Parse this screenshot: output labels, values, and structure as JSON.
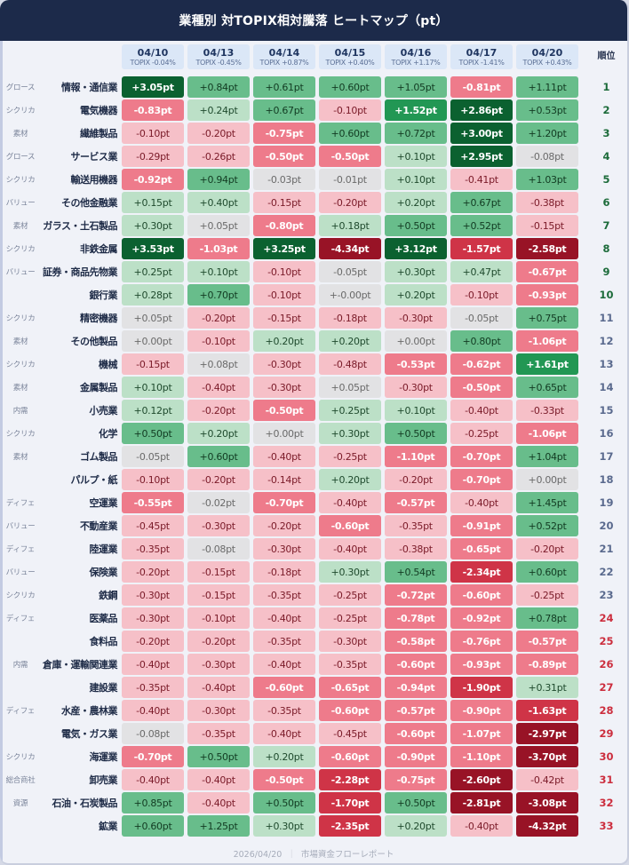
{
  "title": "業種別 対TOPIX相対騰落 ヒートマップ（pt）",
  "rank_header": "順位",
  "unit": "pt",
  "dates": [
    {
      "date": "04/10",
      "topix": "TOPIX -0.04%"
    },
    {
      "date": "04/13",
      "topix": "TOPIX -0.45%"
    },
    {
      "date": "04/14",
      "topix": "TOPIX +0.87%"
    },
    {
      "date": "04/15",
      "topix": "TOPIX +0.40%"
    },
    {
      "date": "04/16",
      "topix": "TOPIX +1.17%"
    },
    {
      "date": "04/17",
      "topix": "TOPIX -1.41%"
    },
    {
      "date": "04/20",
      "topix": "TOPIX +0.43%"
    }
  ],
  "rows": [
    {
      "tag": "グロース",
      "sector": "情報・通信業",
      "rank": "1",
      "cells": [
        "+3.05pt",
        "+0.84pt",
        "+0.61pt",
        "+0.60pt",
        "+1.05pt",
        "-0.81pt",
        "+1.11pt"
      ],
      "classes": [
        "g4",
        "g2",
        "g2",
        "g2",
        "g2",
        "r2",
        "g2"
      ]
    },
    {
      "tag": "シクリカ",
      "sector": "電気機器",
      "rank": "2",
      "cells": [
        "-0.83pt",
        "+0.24pt",
        "+0.67pt",
        "-0.10pt",
        "+1.52pt",
        "+2.86pt",
        "+0.53pt"
      ],
      "classes": [
        "r2",
        "g1",
        "g2",
        "r1",
        "g3",
        "g4",
        "g2"
      ]
    },
    {
      "tag": "素材",
      "sector": "繊維製品",
      "rank": "3",
      "cells": [
        "-0.10pt",
        "-0.20pt",
        "-0.75pt",
        "+0.60pt",
        "+0.72pt",
        "+3.00pt",
        "+1.20pt"
      ],
      "classes": [
        "r1",
        "r1",
        "r2",
        "g2",
        "g2",
        "g4",
        "g2"
      ]
    },
    {
      "tag": "グロース",
      "sector": "サービス業",
      "rank": "4",
      "cells": [
        "-0.29pt",
        "-0.26pt",
        "-0.50pt",
        "-0.50pt",
        "+0.10pt",
        "+2.95pt",
        "-0.08pt"
      ],
      "classes": [
        "r1",
        "r1",
        "r2",
        "r2",
        "g1",
        "g4",
        "n0"
      ]
    },
    {
      "tag": "シクリカ",
      "sector": "輸送用機器",
      "rank": "5",
      "cells": [
        "-0.92pt",
        "+0.94pt",
        "-0.03pt",
        "-0.01pt",
        "+0.10pt",
        "-0.41pt",
        "+1.03pt"
      ],
      "classes": [
        "r2",
        "g2",
        "n0",
        "n0",
        "g1",
        "r1",
        "g2"
      ]
    },
    {
      "tag": "バリュー",
      "sector": "その他金融業",
      "rank": "6",
      "cells": [
        "+0.15pt",
        "+0.40pt",
        "-0.15pt",
        "-0.20pt",
        "+0.20pt",
        "+0.67pt",
        "-0.38pt"
      ],
      "classes": [
        "g1",
        "g1",
        "r1",
        "r1",
        "g1",
        "g2",
        "r1"
      ]
    },
    {
      "tag": "素材",
      "sector": "ガラス・土石製品",
      "rank": "7",
      "cells": [
        "+0.30pt",
        "+0.05pt",
        "-0.80pt",
        "+0.18pt",
        "+0.50pt",
        "+0.52pt",
        "-0.15pt"
      ],
      "classes": [
        "g1",
        "n0",
        "r2",
        "g1",
        "g2",
        "g2",
        "r1"
      ]
    },
    {
      "tag": "シクリカ",
      "sector": "非鉄金属",
      "rank": "8",
      "cells": [
        "+3.53pt",
        "-1.03pt",
        "+3.25pt",
        "-4.34pt",
        "+3.12pt",
        "-1.57pt",
        "-2.58pt"
      ],
      "classes": [
        "g4",
        "r2",
        "g4",
        "r4",
        "g4",
        "r3",
        "r4"
      ]
    },
    {
      "tag": "バリュー",
      "sector": "証券・商品先物業",
      "rank": "9",
      "cells": [
        "+0.25pt",
        "+0.10pt",
        "-0.10pt",
        "-0.05pt",
        "+0.30pt",
        "+0.47pt",
        "-0.67pt"
      ],
      "classes": [
        "g1",
        "g1",
        "r1",
        "n0",
        "g1",
        "g1",
        "r2"
      ]
    },
    {
      "tag": "",
      "sector": "銀行業",
      "rank": "10",
      "cells": [
        "+0.28pt",
        "+0.70pt",
        "-0.10pt",
        "+-0.00pt",
        "+0.20pt",
        "-0.10pt",
        "-0.93pt"
      ],
      "classes": [
        "g1",
        "g2",
        "r1",
        "n0",
        "g1",
        "r1",
        "r2"
      ]
    },
    {
      "tag": "シクリカ",
      "sector": "精密機器",
      "rank": "11",
      "cells": [
        "+0.05pt",
        "-0.20pt",
        "-0.15pt",
        "-0.18pt",
        "-0.30pt",
        "-0.05pt",
        "+0.75pt"
      ],
      "classes": [
        "n0",
        "r1",
        "r1",
        "r1",
        "r1",
        "n0",
        "g2"
      ]
    },
    {
      "tag": "素材",
      "sector": "その他製品",
      "rank": "12",
      "cells": [
        "+0.00pt",
        "-0.10pt",
        "+0.20pt",
        "+0.20pt",
        "+0.00pt",
        "+0.80pt",
        "-1.06pt"
      ],
      "classes": [
        "n0",
        "r1",
        "g1",
        "g1",
        "n0",
        "g2",
        "r2"
      ]
    },
    {
      "tag": "シクリカ",
      "sector": "機械",
      "rank": "13",
      "cells": [
        "-0.15pt",
        "+0.08pt",
        "-0.30pt",
        "-0.48pt",
        "-0.53pt",
        "-0.62pt",
        "+1.61pt"
      ],
      "classes": [
        "r1",
        "n0",
        "r1",
        "r1",
        "r2",
        "r2",
        "g3"
      ]
    },
    {
      "tag": "素材",
      "sector": "金属製品",
      "rank": "14",
      "cells": [
        "+0.10pt",
        "-0.40pt",
        "-0.30pt",
        "+0.05pt",
        "-0.30pt",
        "-0.50pt",
        "+0.65pt"
      ],
      "classes": [
        "g1",
        "r1",
        "r1",
        "n0",
        "r1",
        "r2",
        "g2"
      ]
    },
    {
      "tag": "内需",
      "sector": "小売業",
      "rank": "15",
      "cells": [
        "+0.12pt",
        "-0.20pt",
        "-0.50pt",
        "+0.25pt",
        "+0.10pt",
        "-0.40pt",
        "-0.33pt"
      ],
      "classes": [
        "g1",
        "r1",
        "r2",
        "g1",
        "g1",
        "r1",
        "r1"
      ]
    },
    {
      "tag": "シクリカ",
      "sector": "化学",
      "rank": "16",
      "cells": [
        "+0.50pt",
        "+0.20pt",
        "+0.00pt",
        "+0.30pt",
        "+0.50pt",
        "-0.25pt",
        "-1.06pt"
      ],
      "classes": [
        "g2",
        "g1",
        "n0",
        "g1",
        "g2",
        "r1",
        "r2"
      ]
    },
    {
      "tag": "素材",
      "sector": "ゴム製品",
      "rank": "17",
      "cells": [
        "-0.05pt",
        "+0.60pt",
        "-0.40pt",
        "-0.25pt",
        "-1.10pt",
        "-0.70pt",
        "+1.04pt"
      ],
      "classes": [
        "n0",
        "g2",
        "r1",
        "r1",
        "r2",
        "r2",
        "g2"
      ]
    },
    {
      "tag": "",
      "sector": "パルプ・紙",
      "rank": "18",
      "cells": [
        "-0.10pt",
        "-0.20pt",
        "-0.14pt",
        "+0.20pt",
        "-0.20pt",
        "-0.70pt",
        "+0.00pt"
      ],
      "classes": [
        "r1",
        "r1",
        "r1",
        "g1",
        "r1",
        "r2",
        "n0"
      ]
    },
    {
      "tag": "ディフェ",
      "sector": "空運業",
      "rank": "19",
      "cells": [
        "-0.55pt",
        "-0.02pt",
        "-0.70pt",
        "-0.40pt",
        "-0.57pt",
        "-0.40pt",
        "+1.45pt"
      ],
      "classes": [
        "r2",
        "n0",
        "r2",
        "r1",
        "r2",
        "r1",
        "g2"
      ]
    },
    {
      "tag": "バリュー",
      "sector": "不動産業",
      "rank": "20",
      "cells": [
        "-0.45pt",
        "-0.30pt",
        "-0.20pt",
        "-0.60pt",
        "-0.35pt",
        "-0.91pt",
        "+0.52pt"
      ],
      "classes": [
        "r1",
        "r1",
        "r1",
        "r2",
        "r1",
        "r2",
        "g2"
      ]
    },
    {
      "tag": "ディフェ",
      "sector": "陸運業",
      "rank": "21",
      "cells": [
        "-0.35pt",
        "-0.08pt",
        "-0.30pt",
        "-0.40pt",
        "-0.38pt",
        "-0.65pt",
        "-0.20pt"
      ],
      "classes": [
        "r1",
        "n0",
        "r1",
        "r1",
        "r1",
        "r2",
        "r1"
      ]
    },
    {
      "tag": "バリュー",
      "sector": "保険業",
      "rank": "22",
      "cells": [
        "-0.20pt",
        "-0.15pt",
        "-0.18pt",
        "+0.30pt",
        "+0.54pt",
        "-2.34pt",
        "+0.60pt"
      ],
      "classes": [
        "r1",
        "r1",
        "r1",
        "g1",
        "g2",
        "r3",
        "g2"
      ]
    },
    {
      "tag": "シクリカ",
      "sector": "鉄鋼",
      "rank": "23",
      "cells": [
        "-0.30pt",
        "-0.15pt",
        "-0.35pt",
        "-0.25pt",
        "-0.72pt",
        "-0.60pt",
        "-0.25pt"
      ],
      "classes": [
        "r1",
        "r1",
        "r1",
        "r1",
        "r2",
        "r2",
        "r1"
      ]
    },
    {
      "tag": "ディフェ",
      "sector": "医薬品",
      "rank": "24",
      "cells": [
        "-0.30pt",
        "-0.10pt",
        "-0.40pt",
        "-0.25pt",
        "-0.78pt",
        "-0.92pt",
        "+0.78pt"
      ],
      "classes": [
        "r1",
        "r1",
        "r1",
        "r1",
        "r2",
        "r2",
        "g2"
      ]
    },
    {
      "tag": "",
      "sector": "食料品",
      "rank": "25",
      "cells": [
        "-0.20pt",
        "-0.20pt",
        "-0.35pt",
        "-0.30pt",
        "-0.58pt",
        "-0.76pt",
        "-0.57pt"
      ],
      "classes": [
        "r1",
        "r1",
        "r1",
        "r1",
        "r2",
        "r2",
        "r2"
      ]
    },
    {
      "tag": "内需",
      "sector": "倉庫・運輸関連業",
      "rank": "26",
      "cells": [
        "-0.40pt",
        "-0.30pt",
        "-0.40pt",
        "-0.35pt",
        "-0.60pt",
        "-0.93pt",
        "-0.89pt"
      ],
      "classes": [
        "r1",
        "r1",
        "r1",
        "r1",
        "r2",
        "r2",
        "r2"
      ]
    },
    {
      "tag": "",
      "sector": "建設業",
      "rank": "27",
      "cells": [
        "-0.35pt",
        "-0.40pt",
        "-0.60pt",
        "-0.65pt",
        "-0.94pt",
        "-1.90pt",
        "+0.31pt"
      ],
      "classes": [
        "r1",
        "r1",
        "r2",
        "r2",
        "r2",
        "r3",
        "g1"
      ]
    },
    {
      "tag": "ディフェ",
      "sector": "水産・農林業",
      "rank": "28",
      "cells": [
        "-0.40pt",
        "-0.30pt",
        "-0.35pt",
        "-0.60pt",
        "-0.57pt",
        "-0.90pt",
        "-1.63pt"
      ],
      "classes": [
        "r1",
        "r1",
        "r1",
        "r2",
        "r2",
        "r2",
        "r3"
      ]
    },
    {
      "tag": "",
      "sector": "電気・ガス業",
      "rank": "29",
      "cells": [
        "-0.08pt",
        "-0.35pt",
        "-0.40pt",
        "-0.45pt",
        "-0.60pt",
        "-1.07pt",
        "-2.97pt"
      ],
      "classes": [
        "n0",
        "r1",
        "r1",
        "r1",
        "r2",
        "r2",
        "r4"
      ]
    },
    {
      "tag": "シクリカ",
      "sector": "海運業",
      "rank": "30",
      "cells": [
        "-0.70pt",
        "+0.50pt",
        "+0.20pt",
        "-0.60pt",
        "-0.90pt",
        "-1.10pt",
        "-3.70pt"
      ],
      "classes": [
        "r2",
        "g2",
        "g1",
        "r2",
        "r2",
        "r2",
        "r4"
      ]
    },
    {
      "tag": "総合商社",
      "sector": "卸売業",
      "rank": "31",
      "cells": [
        "-0.40pt",
        "-0.40pt",
        "-0.50pt",
        "-2.28pt",
        "-0.75pt",
        "-2.60pt",
        "-0.42pt"
      ],
      "classes": [
        "r1",
        "r1",
        "r2",
        "r3",
        "r2",
        "r4",
        "r1"
      ]
    },
    {
      "tag": "資源",
      "sector": "石油・石炭製品",
      "rank": "32",
      "cells": [
        "+0.85pt",
        "-0.40pt",
        "+0.50pt",
        "-1.70pt",
        "+0.50pt",
        "-2.81pt",
        "-3.08pt"
      ],
      "classes": [
        "g2",
        "r1",
        "g2",
        "r3",
        "g2",
        "r4",
        "r4"
      ]
    },
    {
      "tag": "",
      "sector": "鉱業",
      "rank": "33",
      "cells": [
        "+0.60pt",
        "+1.25pt",
        "+0.30pt",
        "-2.35pt",
        "+0.20pt",
        "-0.40pt",
        "-4.32pt"
      ],
      "classes": [
        "g2",
        "g2",
        "g1",
        "r3",
        "g1",
        "r1",
        "r4"
      ]
    }
  ],
  "footer": {
    "date": "2026/04/20",
    "separator": "｜",
    "source": "市場資金フローレポート"
  },
  "colors": {
    "title_bg": "#1c2a4a",
    "green_4": "#0b6130",
    "green_3": "#229754",
    "green_2": "#68bd8b",
    "green_1": "#bce0c7",
    "neutral": "#e2e2e4",
    "red_1": "#f6c0c8",
    "red_2": "#ee7b8b",
    "red_3": "#cf3447",
    "red_4": "#981326",
    "rank_top": "#1c6b3a",
    "rank_mid": "#5a6a8e",
    "rank_low": "#cc2e3e"
  },
  "chart_data": {
    "type": "heatmap",
    "title": "業種別 対TOPIX相対騰落 ヒートマップ（pt）",
    "x": [
      "04/10",
      "04/13",
      "04/14",
      "04/15",
      "04/16",
      "04/17",
      "04/20"
    ],
    "x_sublabels": [
      "TOPIX -0.04%",
      "TOPIX -0.45%",
      "TOPIX +0.87%",
      "TOPIX +0.40%",
      "TOPIX +1.17%",
      "TOPIX -1.41%",
      "TOPIX +0.43%"
    ],
    "y": [
      "情報・通信業",
      "電気機器",
      "繊維製品",
      "サービス業",
      "輸送用機器",
      "その他金融業",
      "ガラス・土石製品",
      "非鉄金属",
      "証券・商品先物業",
      "銀行業",
      "精密機器",
      "その他製品",
      "機械",
      "金属製品",
      "小売業",
      "化学",
      "ゴム製品",
      "パルプ・紙",
      "空運業",
      "不動産業",
      "陸運業",
      "保険業",
      "鉄鋼",
      "医薬品",
      "食料品",
      "倉庫・運輸関連業",
      "建設業",
      "水産・農林業",
      "電気・ガス業",
      "海運業",
      "卸売業",
      "石油・石炭製品",
      "鉱業"
    ],
    "y_tags": [
      "グロース",
      "シクリカ",
      "素材",
      "グロース",
      "シクリカ",
      "バリュー",
      "素材",
      "シクリカ",
      "バリュー",
      "",
      "シクリカ",
      "素材",
      "シクリカ",
      "素材",
      "内需",
      "シクリカ",
      "素材",
      "",
      "ディフェ",
      "バリュー",
      "ディフェ",
      "バリュー",
      "シクリカ",
      "ディフェ",
      "",
      "内需",
      "",
      "ディフェ",
      "",
      "シクリカ",
      "総合商社",
      "資源",
      ""
    ],
    "ranks": [
      1,
      2,
      3,
      4,
      5,
      6,
      7,
      8,
      9,
      10,
      11,
      12,
      13,
      14,
      15,
      16,
      17,
      18,
      19,
      20,
      21,
      22,
      23,
      24,
      25,
      26,
      27,
      28,
      29,
      30,
      31,
      32,
      33
    ],
    "values": [
      [
        3.05,
        0.84,
        0.61,
        0.6,
        1.05,
        -0.81,
        1.11
      ],
      [
        -0.83,
        0.24,
        0.67,
        -0.1,
        1.52,
        2.86,
        0.53
      ],
      [
        -0.1,
        -0.2,
        -0.75,
        0.6,
        0.72,
        3.0,
        1.2
      ],
      [
        -0.29,
        -0.26,
        -0.5,
        -0.5,
        0.1,
        2.95,
        -0.08
      ],
      [
        -0.92,
        0.94,
        -0.03,
        -0.01,
        0.1,
        -0.41,
        1.03
      ],
      [
        0.15,
        0.4,
        -0.15,
        -0.2,
        0.2,
        0.67,
        -0.38
      ],
      [
        0.3,
        0.05,
        -0.8,
        0.18,
        0.5,
        0.52,
        -0.15
      ],
      [
        3.53,
        -1.03,
        3.25,
        -4.34,
        3.12,
        -1.57,
        -2.58
      ],
      [
        0.25,
        0.1,
        -0.1,
        -0.05,
        0.3,
        0.47,
        -0.67
      ],
      [
        0.28,
        0.7,
        -0.1,
        0.0,
        0.2,
        -0.1,
        -0.93
      ],
      [
        0.05,
        -0.2,
        -0.15,
        -0.18,
        -0.3,
        -0.05,
        0.75
      ],
      [
        0.0,
        -0.1,
        0.2,
        0.2,
        0.0,
        0.8,
        -1.06
      ],
      [
        -0.15,
        0.08,
        -0.3,
        -0.48,
        -0.53,
        -0.62,
        1.61
      ],
      [
        0.1,
        -0.4,
        -0.3,
        0.05,
        -0.3,
        -0.5,
        0.65
      ],
      [
        0.12,
        -0.2,
        -0.5,
        0.25,
        0.1,
        -0.4,
        -0.33
      ],
      [
        0.5,
        0.2,
        0.0,
        0.3,
        0.5,
        -0.25,
        -1.06
      ],
      [
        -0.05,
        0.6,
        -0.4,
        -0.25,
        -1.1,
        -0.7,
        1.04
      ],
      [
        -0.1,
        -0.2,
        -0.14,
        0.2,
        -0.2,
        -0.7,
        0.0
      ],
      [
        -0.55,
        -0.02,
        -0.7,
        -0.4,
        -0.57,
        -0.4,
        1.45
      ],
      [
        -0.45,
        -0.3,
        -0.2,
        -0.6,
        -0.35,
        -0.91,
        0.52
      ],
      [
        -0.35,
        -0.08,
        -0.3,
        -0.4,
        -0.38,
        -0.65,
        -0.2
      ],
      [
        -0.2,
        -0.15,
        -0.18,
        0.3,
        0.54,
        -2.34,
        0.6
      ],
      [
        -0.3,
        -0.15,
        -0.35,
        -0.25,
        -0.72,
        -0.6,
        -0.25
      ],
      [
        -0.3,
        -0.1,
        -0.4,
        -0.25,
        -0.78,
        -0.92,
        0.78
      ],
      [
        -0.2,
        -0.2,
        -0.35,
        -0.3,
        -0.58,
        -0.76,
        -0.57
      ],
      [
        -0.4,
        -0.3,
        -0.4,
        -0.35,
        -0.6,
        -0.93,
        -0.89
      ],
      [
        -0.35,
        -0.4,
        -0.6,
        -0.65,
        -0.94,
        -1.9,
        0.31
      ],
      [
        -0.4,
        -0.3,
        -0.35,
        -0.6,
        -0.57,
        -0.9,
        -1.63
      ],
      [
        -0.08,
        -0.35,
        -0.4,
        -0.45,
        -0.6,
        -1.07,
        -2.97
      ],
      [
        -0.7,
        0.5,
        0.2,
        -0.6,
        -0.9,
        -1.1,
        -3.7
      ],
      [
        -0.4,
        -0.4,
        -0.5,
        -2.28,
        -0.75,
        -2.6,
        -0.42
      ],
      [
        0.85,
        -0.4,
        0.5,
        -1.7,
        0.5,
        -2.81,
        -3.08
      ],
      [
        0.6,
        1.25,
        0.3,
        -2.35,
        0.2,
        -0.4,
        -4.32
      ]
    ],
    "xlabel": "",
    "ylabel": "",
    "unit": "pt",
    "legend": "none",
    "color_scale": "diverging red-gray-green"
  }
}
